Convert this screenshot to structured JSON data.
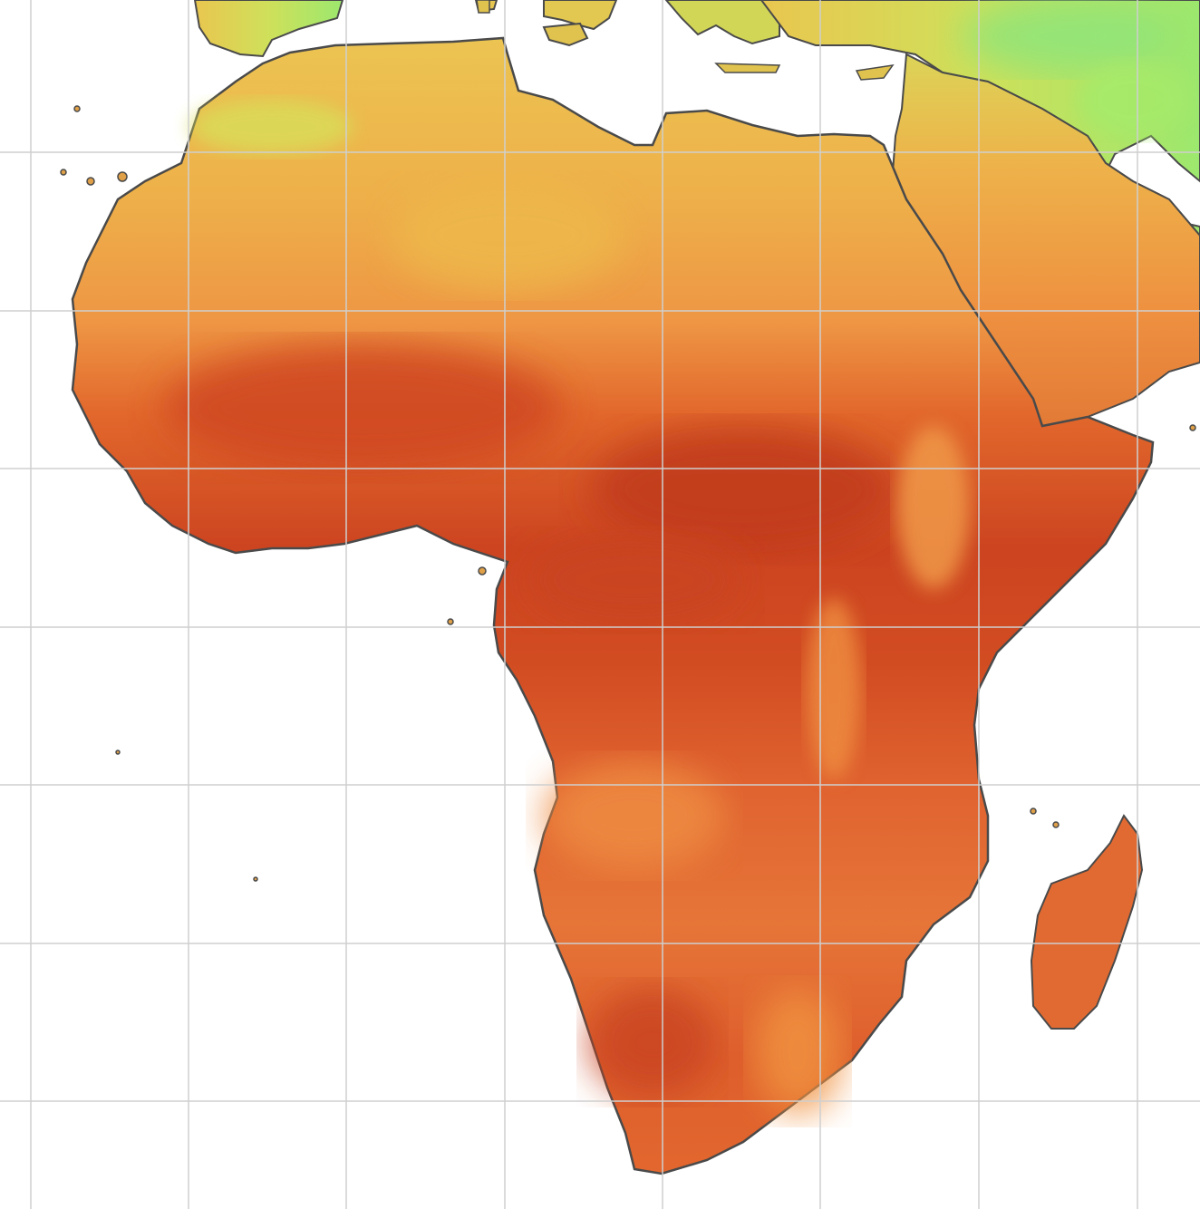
{
  "map": {
    "colors": {
      "ocean": "#ffffff",
      "grid": "#cfcfcf",
      "coast": "#4a4a4a",
      "hot": "#c63d1b",
      "warm": "#df5a28",
      "mid": "#e97a3a",
      "mild": "#f0a048",
      "cool": "#ecc452",
      "cooler": "#d9dc55",
      "cold": "#b6ec5e",
      "coldest": "#8ee47a"
    },
    "gridlines": "on"
  }
}
